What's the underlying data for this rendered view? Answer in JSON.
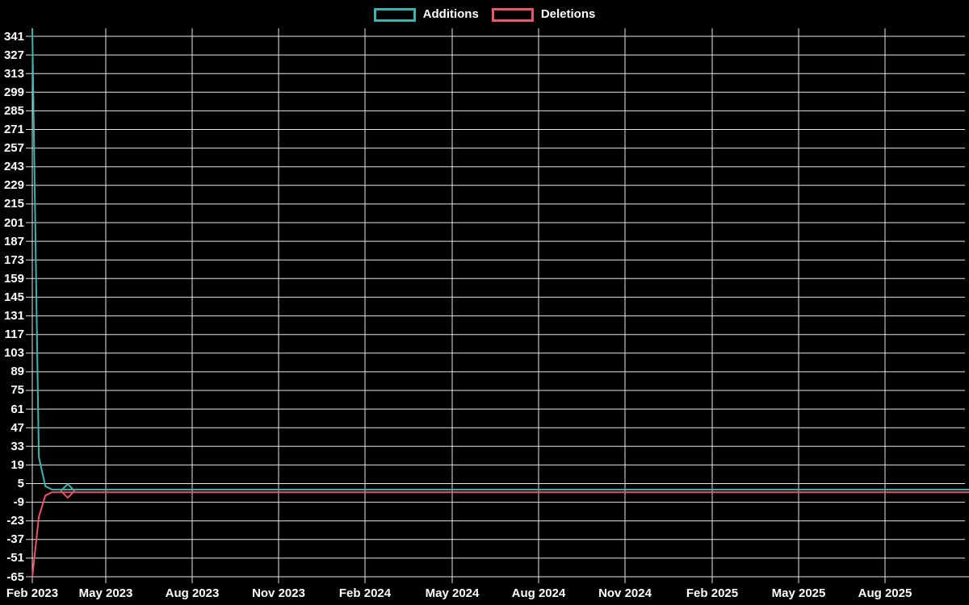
{
  "chart_data": {
    "type": "line",
    "title": "",
    "legend_position": "top-center",
    "background_color": "#000000",
    "grid_color": "#e6e6e6",
    "axis_color": "#ffffff",
    "text_color": "#ffffff",
    "grid": true,
    "x_tick_labels": [
      "Feb 2023",
      "May 2023",
      "Aug 2023",
      "Nov 2023",
      "Feb 2024",
      "May 2024",
      "Aug 2024",
      "Nov 2024",
      "Feb 2025",
      "May 2025",
      "Aug 2025"
    ],
    "y_tick_labels": [
      341,
      327,
      313,
      299,
      285,
      271,
      257,
      243,
      229,
      215,
      201,
      187,
      173,
      159,
      145,
      131,
      117,
      103,
      89,
      75,
      61,
      47,
      33,
      19,
      5,
      -9,
      -23,
      -37,
      -51,
      -65
    ],
    "ylim": [
      -65,
      341
    ],
    "y_step": 14,
    "x_axis_note": "weekly points, Feb 2023 through Sep 2025",
    "series": [
      {
        "name": "Additions",
        "color": "#3cb5af",
        "points": [
          [
            0,
            347
          ],
          [
            1,
            25
          ],
          [
            2,
            3
          ],
          [
            3,
            0.5
          ],
          [
            143,
            0.5
          ]
        ]
      },
      {
        "name": "Deletions",
        "color": "#e9566b",
        "points": [
          [
            0,
            -65
          ],
          [
            1,
            -20
          ],
          [
            2,
            -4
          ],
          [
            3,
            -1.5
          ],
          [
            143,
            -1.5
          ]
        ]
      }
    ],
    "marked_point": {
      "week": 5.4,
      "marker": "diamond",
      "additions": 1,
      "deletions": -2
    }
  }
}
